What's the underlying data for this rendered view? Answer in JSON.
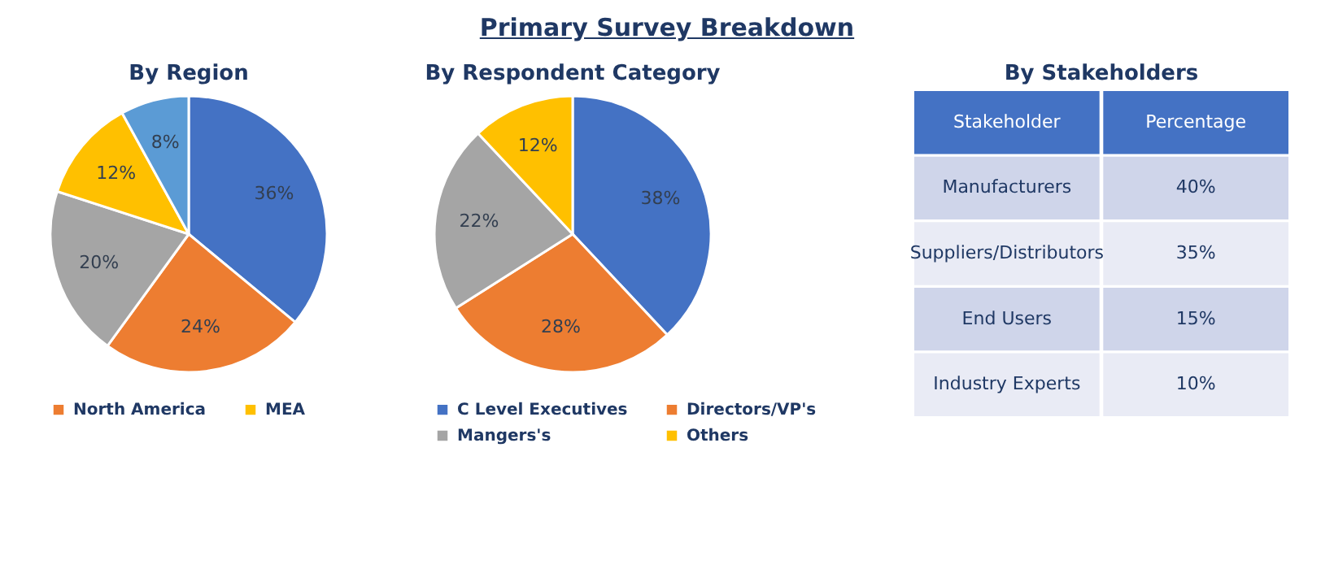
{
  "chart_data": [
    {
      "type": "other",
      "title": "Primary Survey Breakdown"
    },
    {
      "type": "pie",
      "title": "By Region",
      "categories": [
        null,
        "North America",
        null,
        "MEA",
        null
      ],
      "values": [
        36,
        24,
        20,
        12,
        8
      ],
      "colors": [
        "#4472c4",
        "#ed7d31",
        "#a5a5a5",
        "#ffc000",
        "#5b9bd5"
      ],
      "value_labels": [
        "36%",
        "24%",
        "20%",
        "12%",
        "8%"
      ],
      "legend": "bottom"
    },
    {
      "type": "pie",
      "title": "By Respondent Category",
      "categories": [
        "C Level Executives",
        "Directors/VP's",
        "Mangers's",
        "Others"
      ],
      "values": [
        38,
        28,
        22,
        12
      ],
      "colors": [
        "#4472c4",
        "#ed7d31",
        "#a5a5a5",
        "#ffc000"
      ],
      "value_labels": [
        "38%",
        "28%",
        "22%",
        "12%"
      ],
      "legend": "bottom"
    },
    {
      "type": "other",
      "title": "By Stakeholders",
      "xlabel": "Stakeholder",
      "ylabel": "Percentage",
      "categories": [
        "Manufacturers",
        "Suppliers/Distributors",
        "End Users",
        "Industry Experts"
      ],
      "values": [
        40,
        35,
        15,
        10
      ],
      "value_labels": [
        "40%",
        "35%",
        "15%",
        "10%"
      ]
    }
  ]
}
